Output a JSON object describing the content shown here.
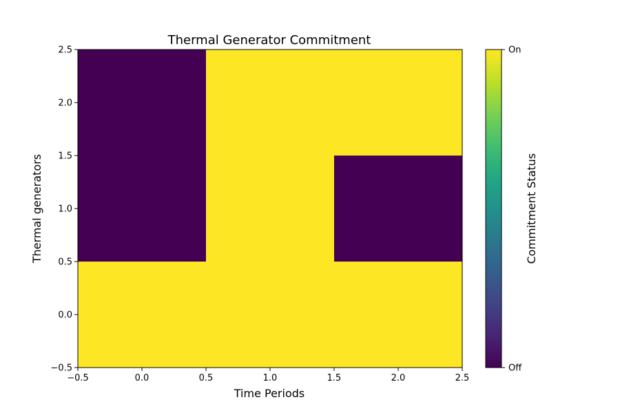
{
  "chart_data": {
    "type": "heatmap",
    "title": "Thermal Generator Commitment",
    "xlabel": "Time Periods",
    "ylabel": "Thermal generators",
    "x": [
      0,
      1,
      2
    ],
    "y": [
      0,
      1,
      2
    ],
    "values": [
      [
        1,
        1,
        1
      ],
      [
        0,
        1,
        0
      ],
      [
        0,
        1,
        1
      ]
    ],
    "xlim": [
      -0.5,
      2.5
    ],
    "ylim": [
      -0.5,
      2.5
    ],
    "xticks": [
      "−0.5",
      "0.0",
      "0.5",
      "1.0",
      "1.5",
      "2.0",
      "2.5"
    ],
    "yticks": [
      "−0.5",
      "0.0",
      "0.5",
      "1.0",
      "1.5",
      "2.0",
      "2.5"
    ],
    "colormap": "viridis",
    "colors": {
      "on": "#fde725",
      "off": "#440154"
    },
    "colorbar": {
      "label": "Commitment Status",
      "range": [
        0,
        1
      ],
      "ticks": [
        {
          "value": 1,
          "label": "On"
        },
        {
          "value": 0,
          "label": "Off"
        }
      ]
    },
    "grid": false
  }
}
